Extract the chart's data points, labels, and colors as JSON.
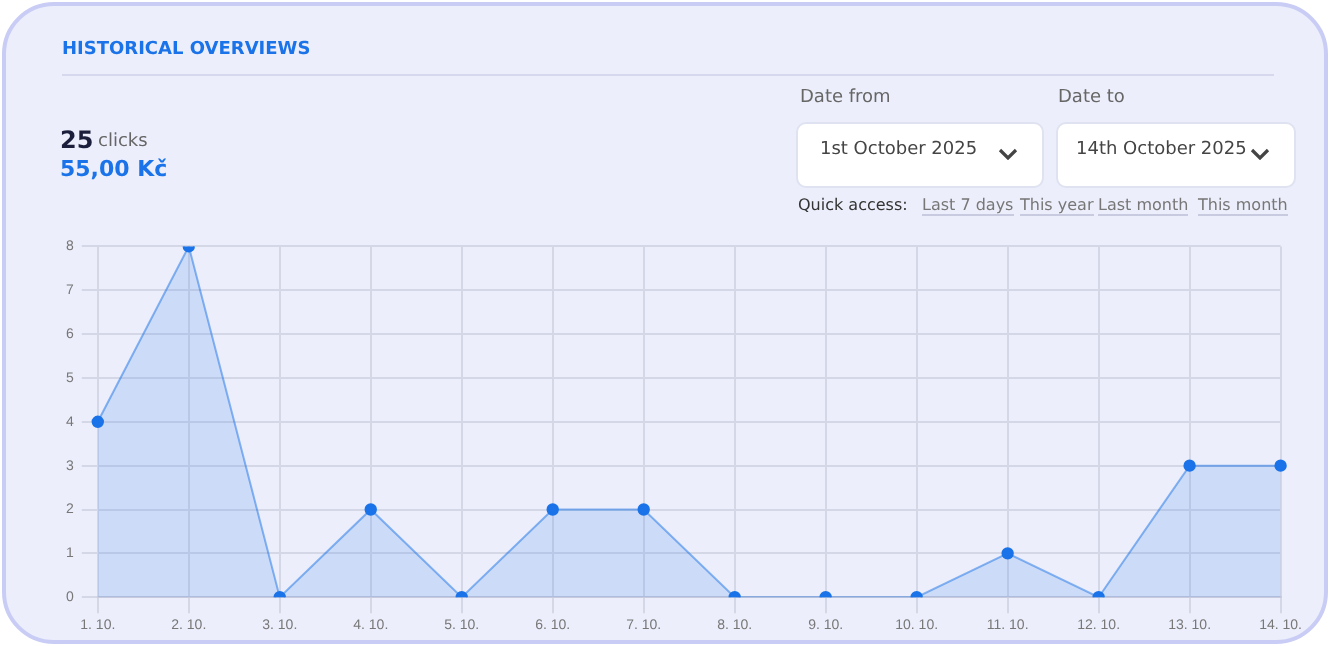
{
  "chart_data": {
    "type": "area",
    "title": "HISTORICAL OVERVIEWS",
    "annotations": [
      "25",
      "clicks",
      "55,00 Kč",
      "Date from",
      "1st October 2025",
      "Date to",
      "14th October 2025",
      "Quick access:",
      "Last 7 days",
      "This year",
      "Last month",
      "This month"
    ],
    "categories": [
      "1. 10.",
      "2. 10.",
      "3. 10.",
      "4. 10.",
      "5. 10.",
      "6. 10.",
      "7. 10.",
      "8. 10.",
      "9. 10.",
      "10. 10.",
      "11. 10.",
      "12. 10.",
      "13. 10.",
      "14. 10."
    ],
    "values": [
      4,
      8,
      0,
      2,
      0,
      2,
      2,
      0,
      0,
      0,
      1,
      0,
      3,
      3
    ],
    "color": "#1a73e8",
    "ylim": [
      0,
      8
    ],
    "yticks": [
      0,
      1,
      2,
      3,
      4,
      5,
      6,
      7,
      8
    ],
    "grid": true,
    "marker": "circle",
    "legend": false
  }
}
